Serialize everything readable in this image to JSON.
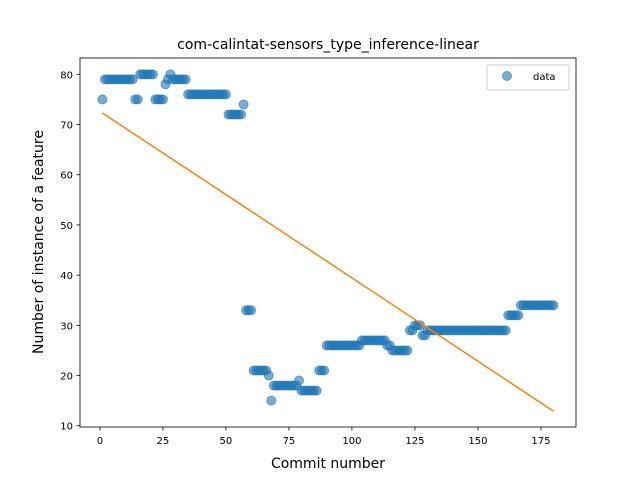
{
  "chart_data": {
    "type": "scatter",
    "title": "com-calintat-sensors_type_inference-linear",
    "xlabel": "Commit number",
    "ylabel": "Number of instance of a feature",
    "xlim": [
      -7.9,
      188.9
    ],
    "ylim": [
      9.75,
      83.25
    ],
    "xticks": [
      0,
      25,
      50,
      75,
      100,
      125,
      150,
      175
    ],
    "yticks": [
      10,
      20,
      30,
      40,
      50,
      60,
      70,
      80
    ],
    "grid": false,
    "legend_position": "top-right",
    "series": [
      {
        "name": "data",
        "kind": "scatter",
        "color": "#1f77b4",
        "points": [
          [
            1,
            75
          ],
          [
            2,
            79
          ],
          [
            3,
            79
          ],
          [
            4,
            79
          ],
          [
            5,
            79
          ],
          [
            6,
            79
          ],
          [
            7,
            79
          ],
          [
            8,
            79
          ],
          [
            9,
            79
          ],
          [
            10,
            79
          ],
          [
            11,
            79
          ],
          [
            12,
            79
          ],
          [
            13,
            79
          ],
          [
            14,
            75
          ],
          [
            15,
            75
          ],
          [
            16,
            80
          ],
          [
            17,
            80
          ],
          [
            18,
            80
          ],
          [
            19,
            80
          ],
          [
            20,
            80
          ],
          [
            21,
            80
          ],
          [
            22,
            75
          ],
          [
            23,
            75
          ],
          [
            24,
            75
          ],
          [
            25,
            75
          ],
          [
            26,
            78
          ],
          [
            27,
            79
          ],
          [
            28,
            80
          ],
          [
            29,
            79
          ],
          [
            30,
            79
          ],
          [
            31,
            79
          ],
          [
            32,
            79
          ],
          [
            33,
            79
          ],
          [
            34,
            79
          ],
          [
            35,
            76
          ],
          [
            36,
            76
          ],
          [
            37,
            76
          ],
          [
            38,
            76
          ],
          [
            39,
            76
          ],
          [
            40,
            76
          ],
          [
            41,
            76
          ],
          [
            42,
            76
          ],
          [
            43,
            76
          ],
          [
            44,
            76
          ],
          [
            45,
            76
          ],
          [
            46,
            76
          ],
          [
            47,
            76
          ],
          [
            48,
            76
          ],
          [
            49,
            76
          ],
          [
            50,
            76
          ],
          [
            51,
            72
          ],
          [
            52,
            72
          ],
          [
            53,
            72
          ],
          [
            54,
            72
          ],
          [
            55,
            72
          ],
          [
            56,
            72
          ],
          [
            57,
            74
          ],
          [
            58,
            33
          ],
          [
            59,
            33
          ],
          [
            60,
            33
          ],
          [
            61,
            21
          ],
          [
            62,
            21
          ],
          [
            63,
            21
          ],
          [
            64,
            21
          ],
          [
            65,
            21
          ],
          [
            66,
            21
          ],
          [
            67,
            20
          ],
          [
            68,
            15
          ],
          [
            69,
            18
          ],
          [
            70,
            18
          ],
          [
            71,
            18
          ],
          [
            72,
            18
          ],
          [
            73,
            18
          ],
          [
            74,
            18
          ],
          [
            75,
            18
          ],
          [
            76,
            18
          ],
          [
            77,
            18
          ],
          [
            78,
            18
          ],
          [
            79,
            19
          ],
          [
            80,
            17
          ],
          [
            81,
            17
          ],
          [
            82,
            17
          ],
          [
            83,
            17
          ],
          [
            84,
            17
          ],
          [
            85,
            17
          ],
          [
            86,
            17
          ],
          [
            87,
            21
          ],
          [
            88,
            21
          ],
          [
            89,
            21
          ],
          [
            90,
            26
          ],
          [
            91,
            26
          ],
          [
            92,
            26
          ],
          [
            93,
            26
          ],
          [
            94,
            26
          ],
          [
            95,
            26
          ],
          [
            96,
            26
          ],
          [
            97,
            26
          ],
          [
            98,
            26
          ],
          [
            99,
            26
          ],
          [
            100,
            26
          ],
          [
            101,
            26
          ],
          [
            102,
            26
          ],
          [
            103,
            26
          ],
          [
            104,
            27
          ],
          [
            105,
            27
          ],
          [
            106,
            27
          ],
          [
            107,
            27
          ],
          [
            108,
            27
          ],
          [
            109,
            27
          ],
          [
            110,
            27
          ],
          [
            111,
            27
          ],
          [
            112,
            27
          ],
          [
            113,
            27
          ],
          [
            114,
            26
          ],
          [
            115,
            26
          ],
          [
            116,
            25
          ],
          [
            117,
            25
          ],
          [
            118,
            25
          ],
          [
            119,
            25
          ],
          [
            120,
            25
          ],
          [
            121,
            25
          ],
          [
            122,
            25
          ],
          [
            123,
            29
          ],
          [
            124,
            29
          ],
          [
            125,
            30
          ],
          [
            126,
            30
          ],
          [
            127,
            30
          ],
          [
            128,
            28
          ],
          [
            129,
            28
          ],
          [
            130,
            29
          ],
          [
            131,
            29
          ],
          [
            132,
            29
          ],
          [
            133,
            29
          ],
          [
            134,
            29
          ],
          [
            135,
            29
          ],
          [
            136,
            29
          ],
          [
            137,
            29
          ],
          [
            138,
            29
          ],
          [
            139,
            29
          ],
          [
            140,
            29
          ],
          [
            141,
            29
          ],
          [
            142,
            29
          ],
          [
            143,
            29
          ],
          [
            144,
            29
          ],
          [
            145,
            29
          ],
          [
            146,
            29
          ],
          [
            147,
            29
          ],
          [
            148,
            29
          ],
          [
            149,
            29
          ],
          [
            150,
            29
          ],
          [
            151,
            29
          ],
          [
            152,
            29
          ],
          [
            153,
            29
          ],
          [
            154,
            29
          ],
          [
            155,
            29
          ],
          [
            156,
            29
          ],
          [
            157,
            29
          ],
          [
            158,
            29
          ],
          [
            159,
            29
          ],
          [
            160,
            29
          ],
          [
            161,
            29
          ],
          [
            162,
            32
          ],
          [
            163,
            32
          ],
          [
            164,
            32
          ],
          [
            165,
            32
          ],
          [
            166,
            32
          ],
          [
            167,
            34
          ],
          [
            168,
            34
          ],
          [
            169,
            34
          ],
          [
            170,
            34
          ],
          [
            171,
            34
          ],
          [
            172,
            34
          ],
          [
            173,
            34
          ],
          [
            174,
            34
          ],
          [
            175,
            34
          ],
          [
            176,
            34
          ],
          [
            177,
            34
          ],
          [
            178,
            34
          ],
          [
            179,
            34
          ],
          [
            180,
            34
          ]
        ]
      },
      {
        "name": "",
        "kind": "line",
        "color": "#ff7f0e",
        "points": [
          [
            1,
            72.3
          ],
          [
            180,
            12.9
          ]
        ]
      }
    ]
  }
}
